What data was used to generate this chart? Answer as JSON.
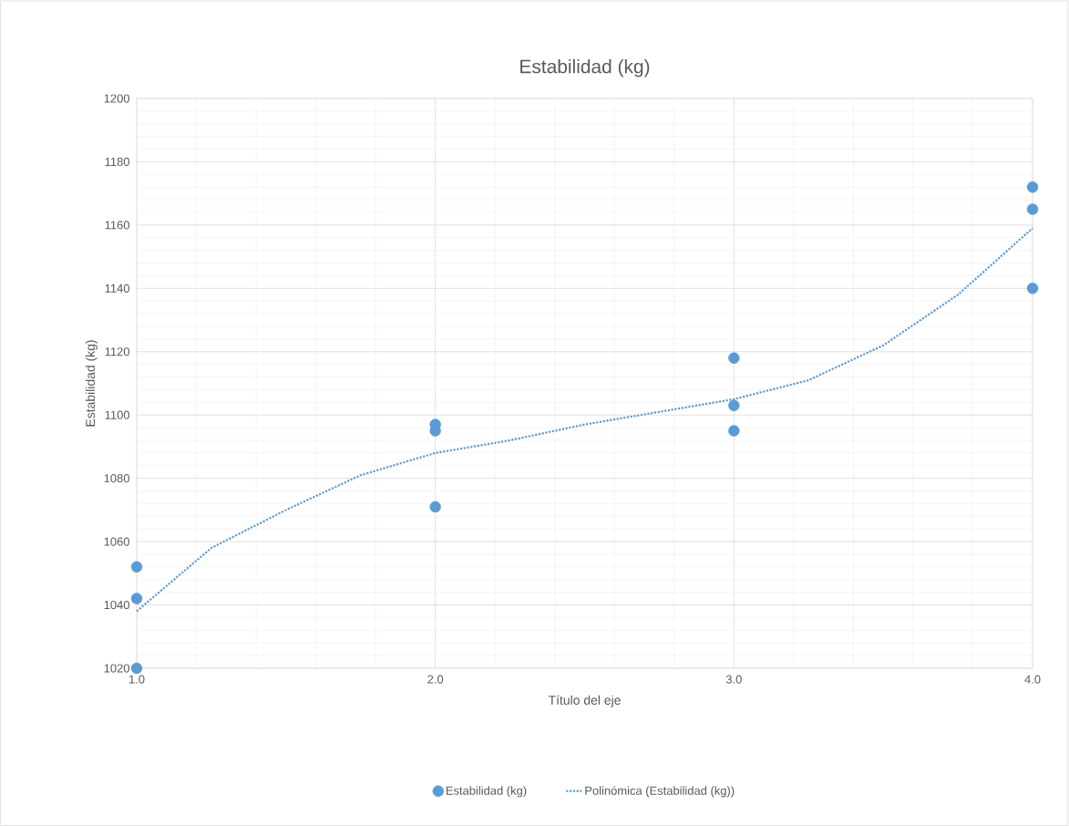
{
  "chart_data": {
    "type": "scatter",
    "title": "Estabilidad (kg)",
    "xlabel": "Título del eje",
    "ylabel": "Estabilidad (kg)",
    "xlim": [
      1,
      4
    ],
    "ylim": [
      1020,
      1200
    ],
    "xticks": [
      {
        "value": 1,
        "label": "1.0"
      },
      {
        "value": 2,
        "label": "2.0"
      },
      {
        "value": 3,
        "label": "3.0"
      },
      {
        "value": 4,
        "label": "4.0"
      }
    ],
    "yticks": [
      1020,
      1040,
      1060,
      1080,
      1100,
      1120,
      1140,
      1160,
      1180,
      1200
    ],
    "grid": true,
    "legend": "bottom",
    "series": [
      {
        "name": "Estabilidad (kg)",
        "color": "#5b9bd5",
        "marker": "circle",
        "x": [
          1,
          1,
          1,
          2,
          2,
          2,
          3,
          3,
          3,
          4,
          4,
          4
        ],
        "values": [
          1052,
          1042,
          1020,
          1097,
          1095,
          1071,
          1118,
          1103,
          1095,
          1172,
          1165,
          1140
        ]
      },
      {
        "name": "Polinómica (Estabilidad (kg))",
        "type": "line",
        "color": "#5b9bd5",
        "marker": "none",
        "line_style": "dotted",
        "x": [
          1,
          1.25,
          1.5,
          1.75,
          2,
          2.25,
          2.5,
          2.75,
          3,
          3.25,
          3.5,
          3.75,
          4
        ],
        "values": [
          1038,
          1058,
          1070,
          1081,
          1088,
          1092,
          1097,
          1101,
          1105,
          1111,
          1122,
          1138,
          1159
        ]
      }
    ]
  }
}
